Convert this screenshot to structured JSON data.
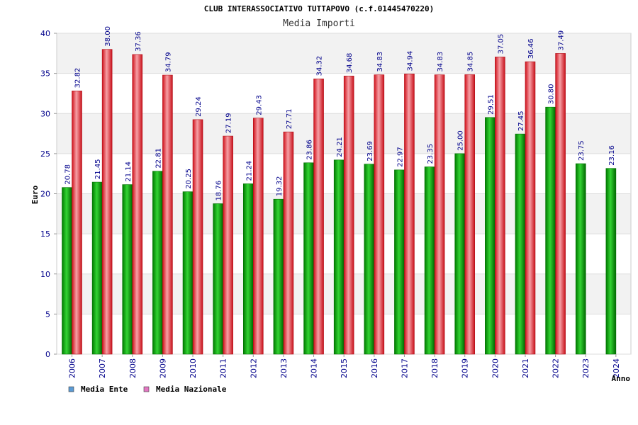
{
  "chart_data": {
    "type": "bar",
    "title": "CLUB INTERASSOCIATIVO TUTTAPOVO (c.f.01445470220)",
    "subtitle": "Media Importi",
    "xlabel": "Anno",
    "ylabel": "Euro",
    "ylim": [
      0,
      40
    ],
    "yticks": [
      0,
      5,
      10,
      15,
      20,
      25,
      30,
      35,
      40
    ],
    "categories": [
      "2006",
      "2007",
      "2008",
      "2009",
      "2010",
      "2011",
      "2012",
      "2013",
      "2014",
      "2015",
      "2016",
      "2017",
      "2018",
      "2019",
      "2020",
      "2021",
      "2022",
      "2023",
      "2024"
    ],
    "series": [
      {
        "name": "Media Ente",
        "legend_color": "#5b9bd5",
        "bar_color": "#00a800",
        "values": [
          20.78,
          21.45,
          21.14,
          22.81,
          20.25,
          18.76,
          21.24,
          19.32,
          23.86,
          24.21,
          23.69,
          22.97,
          23.35,
          25.0,
          29.51,
          27.45,
          30.8,
          23.75,
          23.16
        ],
        "labels": [
          "20.78",
          "21.45",
          "21.14",
          "22.81",
          "20.25",
          "18.76",
          "21.24",
          "19.32",
          "23.86",
          "24.21",
          "23.69",
          "22.97",
          "23.35",
          "25.00",
          "29.51",
          "27.45",
          "30.80",
          "23.75",
          "23.16"
        ]
      },
      {
        "name": "Media Nazionale",
        "legend_color": "#e377c2",
        "bar_color": "#e8202a",
        "values": [
          32.82,
          38.0,
          37.36,
          34.79,
          29.24,
          27.19,
          29.43,
          27.71,
          34.32,
          34.68,
          34.83,
          34.94,
          34.83,
          34.85,
          37.05,
          36.46,
          37.49,
          null,
          null
        ],
        "labels": [
          "32.82",
          "38.00",
          "37.36",
          "34.79",
          "29.24",
          "27.19",
          "29.43",
          "27.71",
          "34.32",
          "34.68",
          "34.83",
          "34.94",
          "34.83",
          "34.85",
          "37.05",
          "36.46",
          "37.49",
          "",
          ""
        ]
      }
    ],
    "legend": {
      "position": "bottom-left"
    },
    "grid": true
  }
}
